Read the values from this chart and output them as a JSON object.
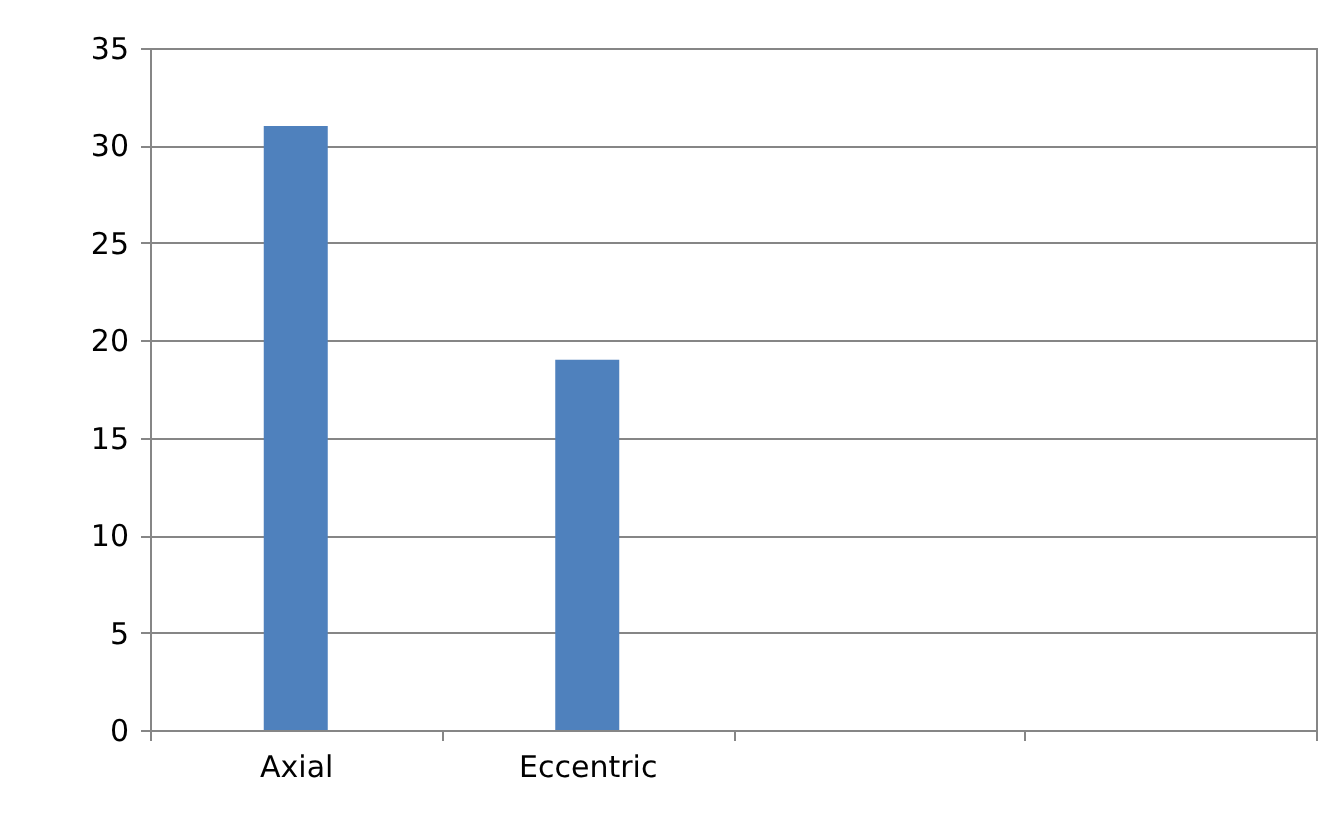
{
  "chart_data": {
    "type": "bar",
    "categories": [
      "Axial",
      "Eccentric",
      null,
      null
    ],
    "values": [
      31,
      19,
      null,
      null
    ],
    "color": "#4f81bd",
    "ylim": [
      0,
      35
    ],
    "yticks": [
      0,
      5,
      10,
      15,
      20,
      25,
      30,
      35
    ],
    "grid": "y"
  }
}
